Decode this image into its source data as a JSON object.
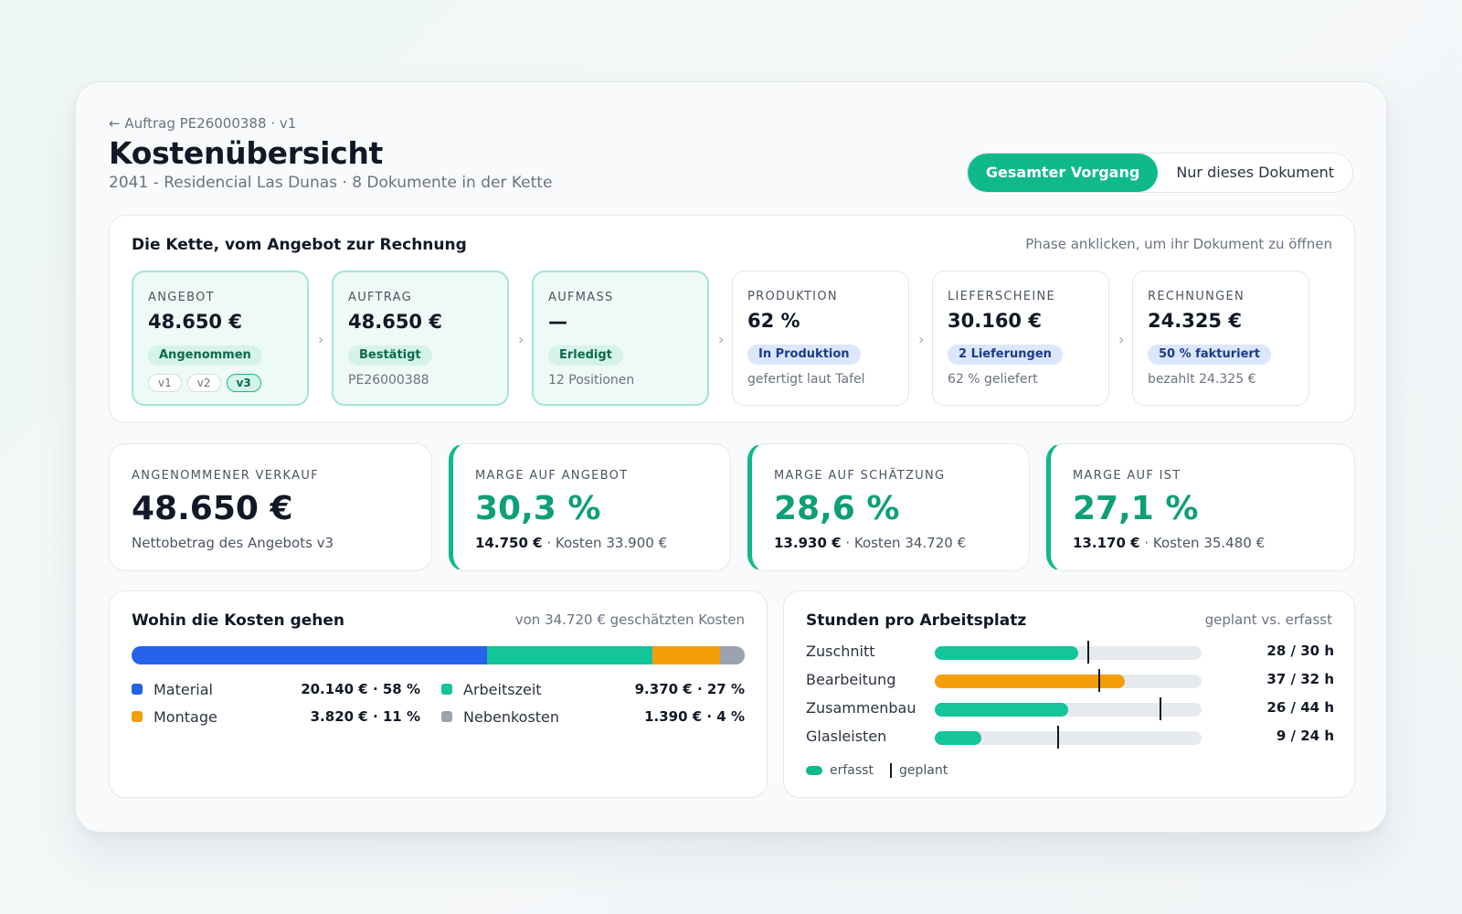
{
  "header": {
    "back_link": "← Auftrag PE26000388 · v1",
    "title": "Kostenübersicht",
    "subtitle": "2041 - Residencial Las Dunas · 8 Dokumente in der Kette"
  },
  "scope_toggle": {
    "options": [
      "Gesamter Vorgang",
      "Nur dieses Dokument"
    ],
    "selected": "Gesamter Vorgang"
  },
  "chain": {
    "title": "Die Kette, vom Angebot zur Rechnung",
    "hint": "Phase anklicken, um ihr Dokument zu öffnen",
    "phases": [
      {
        "label": "ANGEBOT",
        "value": "48.650 €",
        "badge": "Angenommen",
        "badge_color": "green",
        "versions": [
          "v1",
          "v2",
          "v3"
        ],
        "current_version": "v3",
        "note": ""
      },
      {
        "label": "AUFTRAG",
        "value": "48.650 €",
        "badge": "Bestätigt",
        "badge_color": "green",
        "note": "PE26000388"
      },
      {
        "label": "AUFMASS",
        "value": "—",
        "badge": "Erledigt",
        "badge_color": "green",
        "note": "12 Positionen"
      },
      {
        "label": "PRODUKTION",
        "value": "62 %",
        "badge": "In Produktion",
        "badge_color": "blue",
        "note": "gefertigt laut Tafel"
      },
      {
        "label": "LIEFERSCHEINE",
        "value": "30.160 €",
        "badge": "2 Lieferungen",
        "badge_color": "blue",
        "note": "62 % geliefert"
      },
      {
        "label": "RECHNUNGEN",
        "value": "24.325 €",
        "badge": "50 % fakturiert",
        "badge_color": "blue",
        "note": "bezahlt 24.325 €"
      }
    ]
  },
  "kpis": [
    {
      "label": "ANGENOMMENER VERKAUF",
      "value": "48.650 €",
      "note_bold": "",
      "note": "Nettobetrag des Angebots v3"
    },
    {
      "label": "MARGE AUF ANGEBOT",
      "value": "30,3 %",
      "note_bold": "14.750 €",
      "note": " · Kosten 33.900 €"
    },
    {
      "label": "MARGE AUF SCHÄTZUNG",
      "value": "28,6 %",
      "note_bold": "13.930 €",
      "note": " · Kosten 34.720 €"
    },
    {
      "label": "MARGE AUF IST",
      "value": "27,1 %",
      "note_bold": "13.170 €",
      "note": " · Kosten 35.480 €"
    }
  ],
  "costs": {
    "title": "Wohin die Kosten gehen",
    "hint": "von 34.720 € geschätzten Kosten",
    "items": [
      {
        "name": "Material",
        "value": "20.140 € · 58 %",
        "share": 58,
        "color": "#2563eb"
      },
      {
        "name": "Arbeitszeit",
        "value": "9.370 € · 27 %",
        "share": 27,
        "color": "#14c49a"
      },
      {
        "name": "Montage",
        "value": "3.820 € · 11 %",
        "share": 11,
        "color": "#f59e0b"
      },
      {
        "name": "Nebenkosten",
        "value": "1.390 € · 4 %",
        "share": 4,
        "color": "#9ca3af"
      }
    ]
  },
  "hours": {
    "title": "Stunden pro Arbeitsplatz",
    "hint": "geplant vs. erfasst",
    "scale_max": 52,
    "rows": [
      {
        "name": "Zuschnitt",
        "value": "28 / 30 h",
        "actual": 28,
        "planned": 30,
        "color": "#14c49a"
      },
      {
        "name": "Bearbeitung",
        "value": "37 / 32 h",
        "actual": 37,
        "planned": 32,
        "color": "#f59e0b"
      },
      {
        "name": "Zusammenbau",
        "value": "26 / 44 h",
        "actual": 26,
        "planned": 44,
        "color": "#14c49a"
      },
      {
        "name": "Glasleisten",
        "value": "9 / 24 h",
        "actual": 9,
        "planned": 24,
        "color": "#14c49a"
      }
    ],
    "legend_actual": "erfasst",
    "legend_planned": "geplant"
  }
}
